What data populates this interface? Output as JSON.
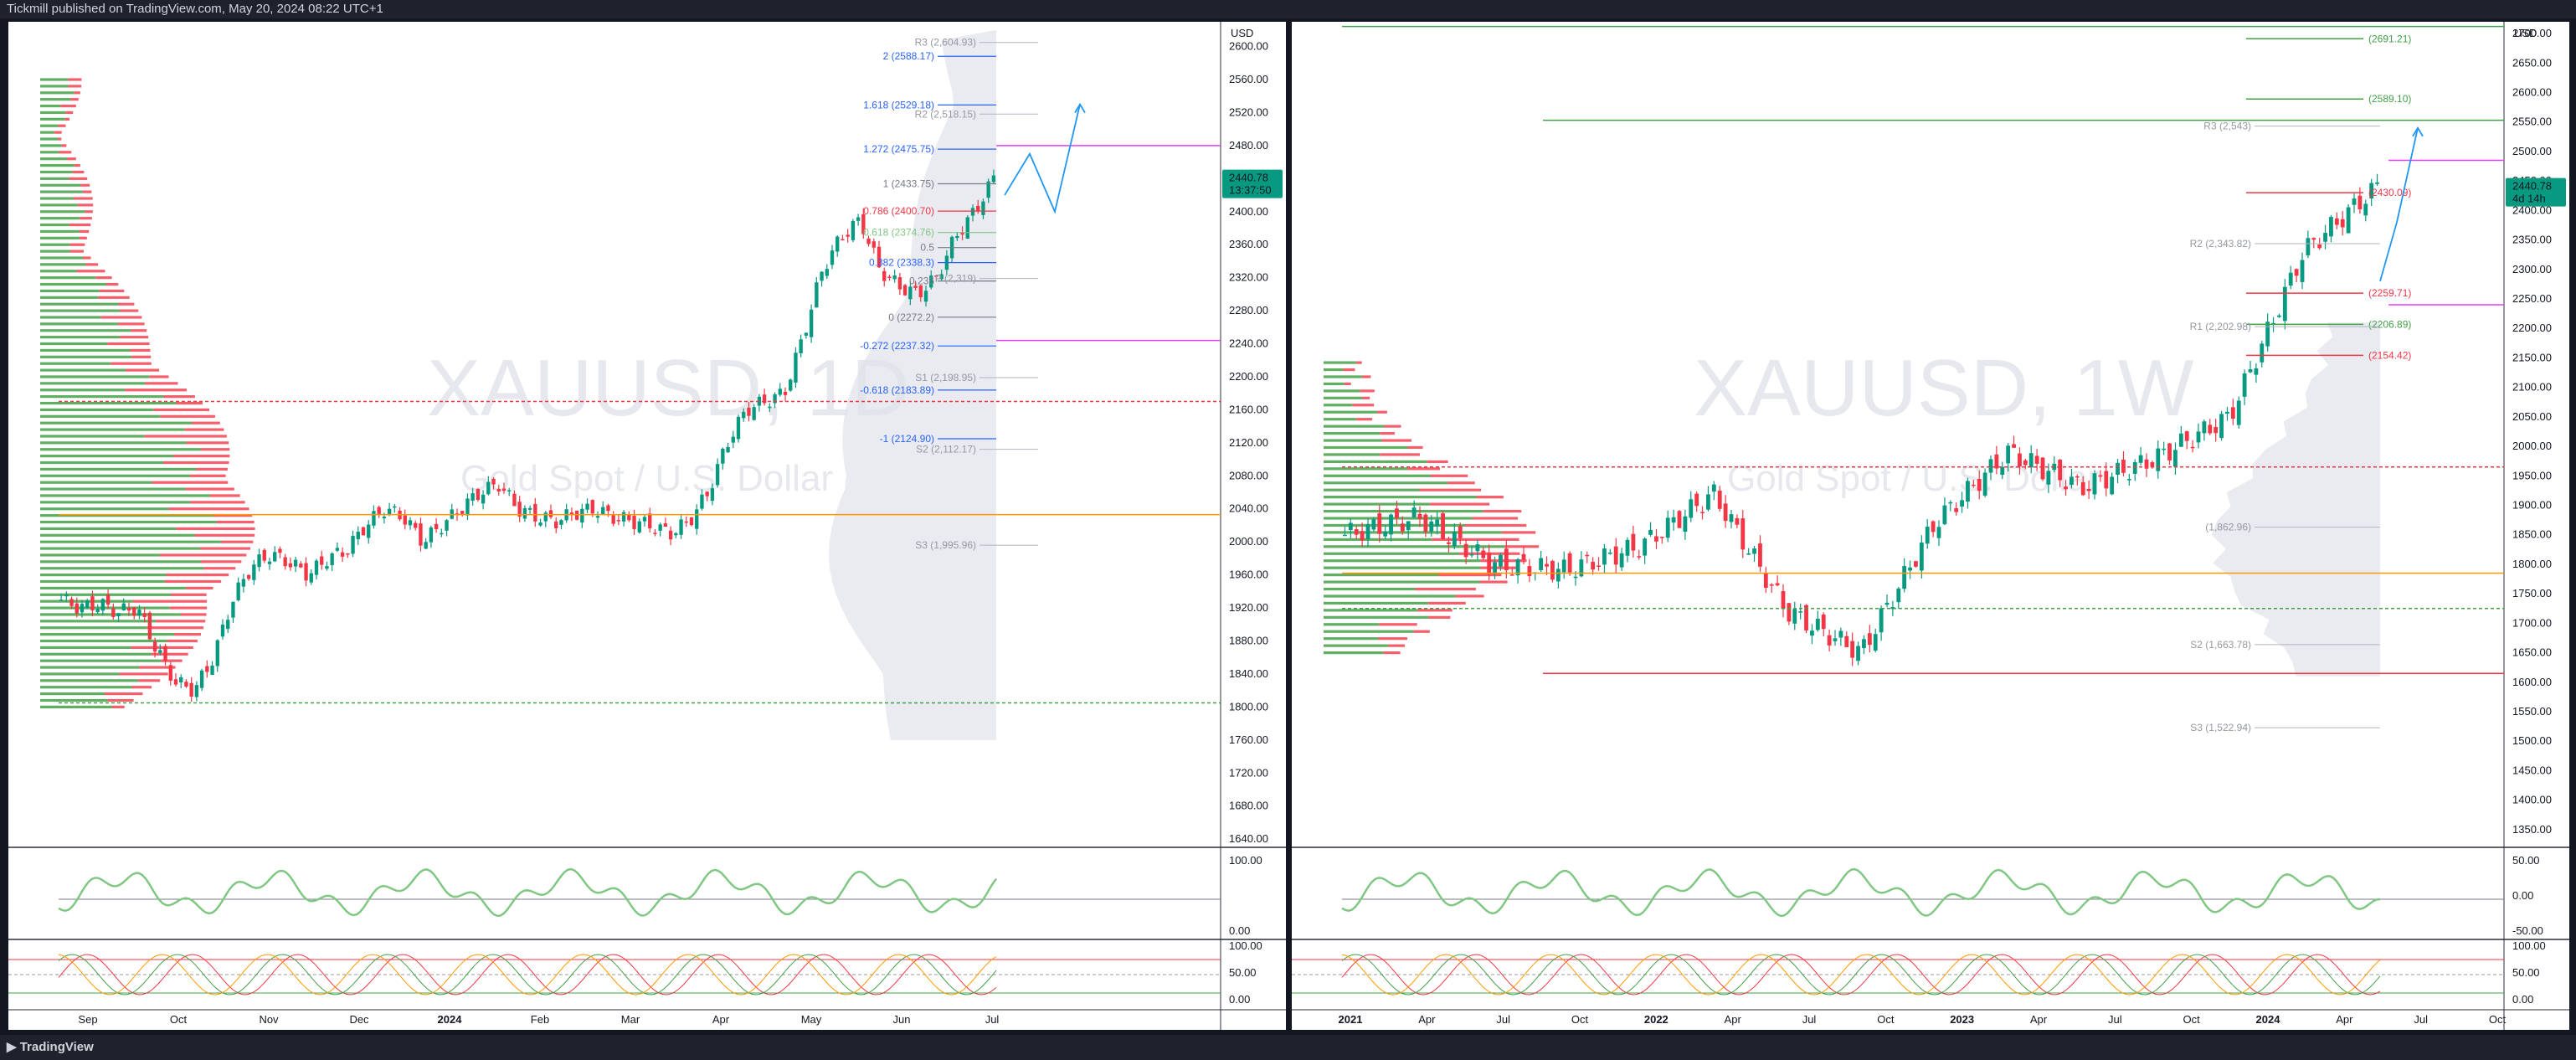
{
  "header": {
    "published": "Tickmill published on TradingView.com, May 20, 2024 08:22 UTC+1"
  },
  "footer": {
    "brand": "TradingView"
  },
  "chart_data": [
    {
      "type": "candlestick",
      "symbol": "XAUUSD, 1D",
      "title": "XAUUSD, 1D",
      "subtitle": "Gold Spot / U.S. Dollar",
      "currency": "USD",
      "last_price": "2440.78",
      "countdown": "13:37:50",
      "y_ticks": [
        2600,
        2560,
        2520,
        2480,
        2440,
        2400,
        2360,
        2320,
        2280,
        2240,
        2200,
        2160,
        2120,
        2080,
        2040,
        2000,
        1960,
        1920,
        1880,
        1840,
        1800,
        1760,
        1720,
        1680,
        1640
      ],
      "ylim": [
        1630,
        2630
      ],
      "x_ticks": [
        "Sep",
        "Oct",
        "Nov",
        "Dec",
        "2024",
        "Feb",
        "Mar",
        "Apr",
        "May",
        "Jun",
        "Jul"
      ],
      "fib_levels": [
        {
          "label": "2 (2588.17)",
          "price": 2588.17,
          "color": "#2962ff"
        },
        {
          "label": "1.618 (2529.18)",
          "price": 2529.18,
          "color": "#2962ff"
        },
        {
          "label": "1.272 (2475.75)",
          "price": 2475.75,
          "color": "#2962ff"
        },
        {
          "label": "1 (2433.75)",
          "price": 2433.75,
          "color": "#787b86"
        },
        {
          "label": "0.786 (2400.70)",
          "price": 2400.7,
          "color": "#f23645"
        },
        {
          "label": "0.618 (2374.76)",
          "price": 2374.76,
          "color": "#81c784"
        },
        {
          "label": "0.5",
          "price": 2356.5,
          "color": "#787b86"
        },
        {
          "label": "0.382 (2338.3)",
          "price": 2338.3,
          "color": "#2962ff"
        },
        {
          "label": "0.236",
          "price": 2316,
          "color": "#787b86"
        },
        {
          "label": "0 (2272.2)",
          "price": 2272.2,
          "color": "#787b86"
        },
        {
          "label": "-0.272 (2237.32)",
          "price": 2237.32,
          "color": "#2962ff"
        },
        {
          "label": "-0.618 (2183.89)",
          "price": 2183.89,
          "color": "#2962ff"
        },
        {
          "label": "-1 (2124.90)",
          "price": 2124.9,
          "color": "#2962ff"
        }
      ],
      "pivots": [
        {
          "label": "R3 (2,604.93)",
          "price": 2604.93
        },
        {
          "label": "R2 (2,518.15)",
          "price": 2518.15
        },
        {
          "label": "P (2,319)",
          "price": 2319
        },
        {
          "label": "S1 (2,198.95)",
          "price": 2198.95
        },
        {
          "label": "S2 (2,112.17)",
          "price": 2112.17
        },
        {
          "label": "S3 (1,995.96)",
          "price": 1995.96
        }
      ],
      "ohlc": [
        {
          "month": "Sep",
          "close": 1930
        },
        {
          "month": "Sep",
          "close": 1920
        },
        {
          "month": "Sep",
          "close": 1925
        },
        {
          "month": "Sep",
          "close": 1915
        },
        {
          "month": "Sep",
          "close": 1920
        },
        {
          "month": "Oct",
          "close": 1870
        },
        {
          "month": "Oct",
          "close": 1830
        },
        {
          "month": "Oct",
          "close": 1820
        },
        {
          "month": "Oct",
          "close": 1860
        },
        {
          "month": "Oct",
          "close": 1930
        },
        {
          "month": "Oct",
          "close": 1970
        },
        {
          "month": "Oct",
          "close": 1985
        },
        {
          "month": "Nov",
          "close": 1975
        },
        {
          "month": "Nov",
          "close": 1960
        },
        {
          "month": "Nov",
          "close": 1980
        },
        {
          "month": "Nov",
          "close": 1990
        },
        {
          "month": "Nov",
          "close": 2020
        },
        {
          "month": "Nov",
          "close": 2040
        },
        {
          "month": "Dec",
          "close": 2030
        },
        {
          "month": "Dec",
          "close": 2000
        },
        {
          "month": "Dec",
          "close": 2020
        },
        {
          "month": "Dec",
          "close": 2040
        },
        {
          "month": "Dec",
          "close": 2060
        },
        {
          "month": "Dec",
          "close": 2070
        },
        {
          "month": "2024",
          "close": 2040
        },
        {
          "month": "2024",
          "close": 2030
        },
        {
          "month": "2024",
          "close": 2025
        },
        {
          "month": "2024",
          "close": 2035
        },
        {
          "month": "2024",
          "close": 2040
        },
        {
          "month": "Feb",
          "close": 2030
        },
        {
          "month": "Feb",
          "close": 2025
        },
        {
          "month": "Feb",
          "close": 2020
        },
        {
          "month": "Feb",
          "close": 2010
        },
        {
          "month": "Feb",
          "close": 2025
        },
        {
          "month": "Mar",
          "close": 2060
        },
        {
          "month": "Mar",
          "close": 2120
        },
        {
          "month": "Mar",
          "close": 2160
        },
        {
          "month": "Mar",
          "close": 2170
        },
        {
          "month": "Mar",
          "close": 2180
        },
        {
          "month": "Apr",
          "close": 2250
        },
        {
          "month": "Apr",
          "close": 2330
        },
        {
          "month": "Apr",
          "close": 2370
        },
        {
          "month": "Apr",
          "close": 2390
        },
        {
          "month": "Apr",
          "close": 2330
        },
        {
          "month": "Apr",
          "close": 2310
        },
        {
          "month": "May",
          "close": 2300
        },
        {
          "month": "May",
          "close": 2320
        },
        {
          "month": "May",
          "close": 2370
        },
        {
          "month": "May",
          "close": 2400
        },
        {
          "month": "May",
          "close": 2440
        }
      ]
    },
    {
      "type": "candlestick",
      "symbol": "XAUUSD, 1W",
      "title": "XAUUSD, 1W",
      "subtitle": "Gold Spot / U.S. Dollar",
      "currency": "USD",
      "last_price": "2440.78",
      "countdown": "4d 14h",
      "y_ticks": [
        2700,
        2650,
        2600,
        2550,
        2500,
        2450,
        2400,
        2350,
        2300,
        2250,
        2200,
        2150,
        2100,
        2050,
        2000,
        1950,
        1900,
        1850,
        1800,
        1750,
        1700,
        1650,
        1600,
        1550,
        1500,
        1450,
        1400,
        1350
      ],
      "ylim": [
        1320,
        2720
      ],
      "x_ticks": [
        "2021",
        "Apr",
        "Jul",
        "Oct",
        "2022",
        "Apr",
        "Jul",
        "Oct",
        "2023",
        "Apr",
        "Jul",
        "Oct",
        "2024",
        "Apr",
        "Jul",
        "Oct"
      ],
      "levels": [
        {
          "label": "(2691.21)",
          "price": 2691.21,
          "color": "#43a047"
        },
        {
          "label": "(2589.10)",
          "price": 2589.1,
          "color": "#43a047"
        },
        {
          "label": "(2430.09)",
          "price": 2430.09,
          "color": "#f23645"
        },
        {
          "label": "(2259.71)",
          "price": 2259.71,
          "color": "#f23645"
        },
        {
          "label": "(2206.89)",
          "price": 2206.89,
          "color": "#43a047"
        },
        {
          "label": "(2154.42)",
          "price": 2154.42,
          "color": "#f23645"
        }
      ],
      "pivots": [
        {
          "label": "R3 (2,543)",
          "price": 2543
        },
        {
          "label": "R2 (2,343.82)",
          "price": 2343.82
        },
        {
          "label": "R1 (2,202.98)",
          "price": 2202.98
        },
        {
          "label": "(1,862.96)",
          "price": 1862.96
        },
        {
          "label": "S2 (1,663.78)",
          "price": 1663.78
        },
        {
          "label": "S3 (1,522.94)",
          "price": 1522.94
        }
      ],
      "ohlc_quarterly": [
        {
          "q": "2021",
          "close": 1850
        },
        {
          "q": "Apr",
          "close": 1880
        },
        {
          "q": "Jul",
          "close": 1800
        },
        {
          "q": "Oct",
          "close": 1790
        },
        {
          "q": "2022",
          "close": 1830
        },
        {
          "q": "Apr",
          "close": 1920
        },
        {
          "q": "Jul",
          "close": 1720
        },
        {
          "q": "Oct",
          "close": 1650
        },
        {
          "q": "2023",
          "close": 1870
        },
        {
          "q": "Apr",
          "close": 1990
        },
        {
          "q": "Jul",
          "close": 1930
        },
        {
          "q": "Oct",
          "close": 1980
        },
        {
          "q": "2024",
          "close": 2050
        },
        {
          "q": "Apr",
          "close": 2330
        },
        {
          "q": "May",
          "close": 2440
        }
      ]
    }
  ],
  "indicators": {
    "left": {
      "osc_ticks": [
        "100.00",
        "0.00"
      ],
      "stoch_ticks": [
        "100.00",
        "50.00",
        "0.00"
      ]
    },
    "right": {
      "osc_ticks": [
        "50.00",
        "0.00",
        "-50.00"
      ],
      "stoch_ticks": [
        "100.00",
        "50.00",
        "0.00"
      ]
    }
  },
  "colors": {
    "up": "#089981",
    "down": "#f23645",
    "accent": "#2962ff",
    "orange": "#ff9800",
    "magenta": "#e040fb"
  }
}
